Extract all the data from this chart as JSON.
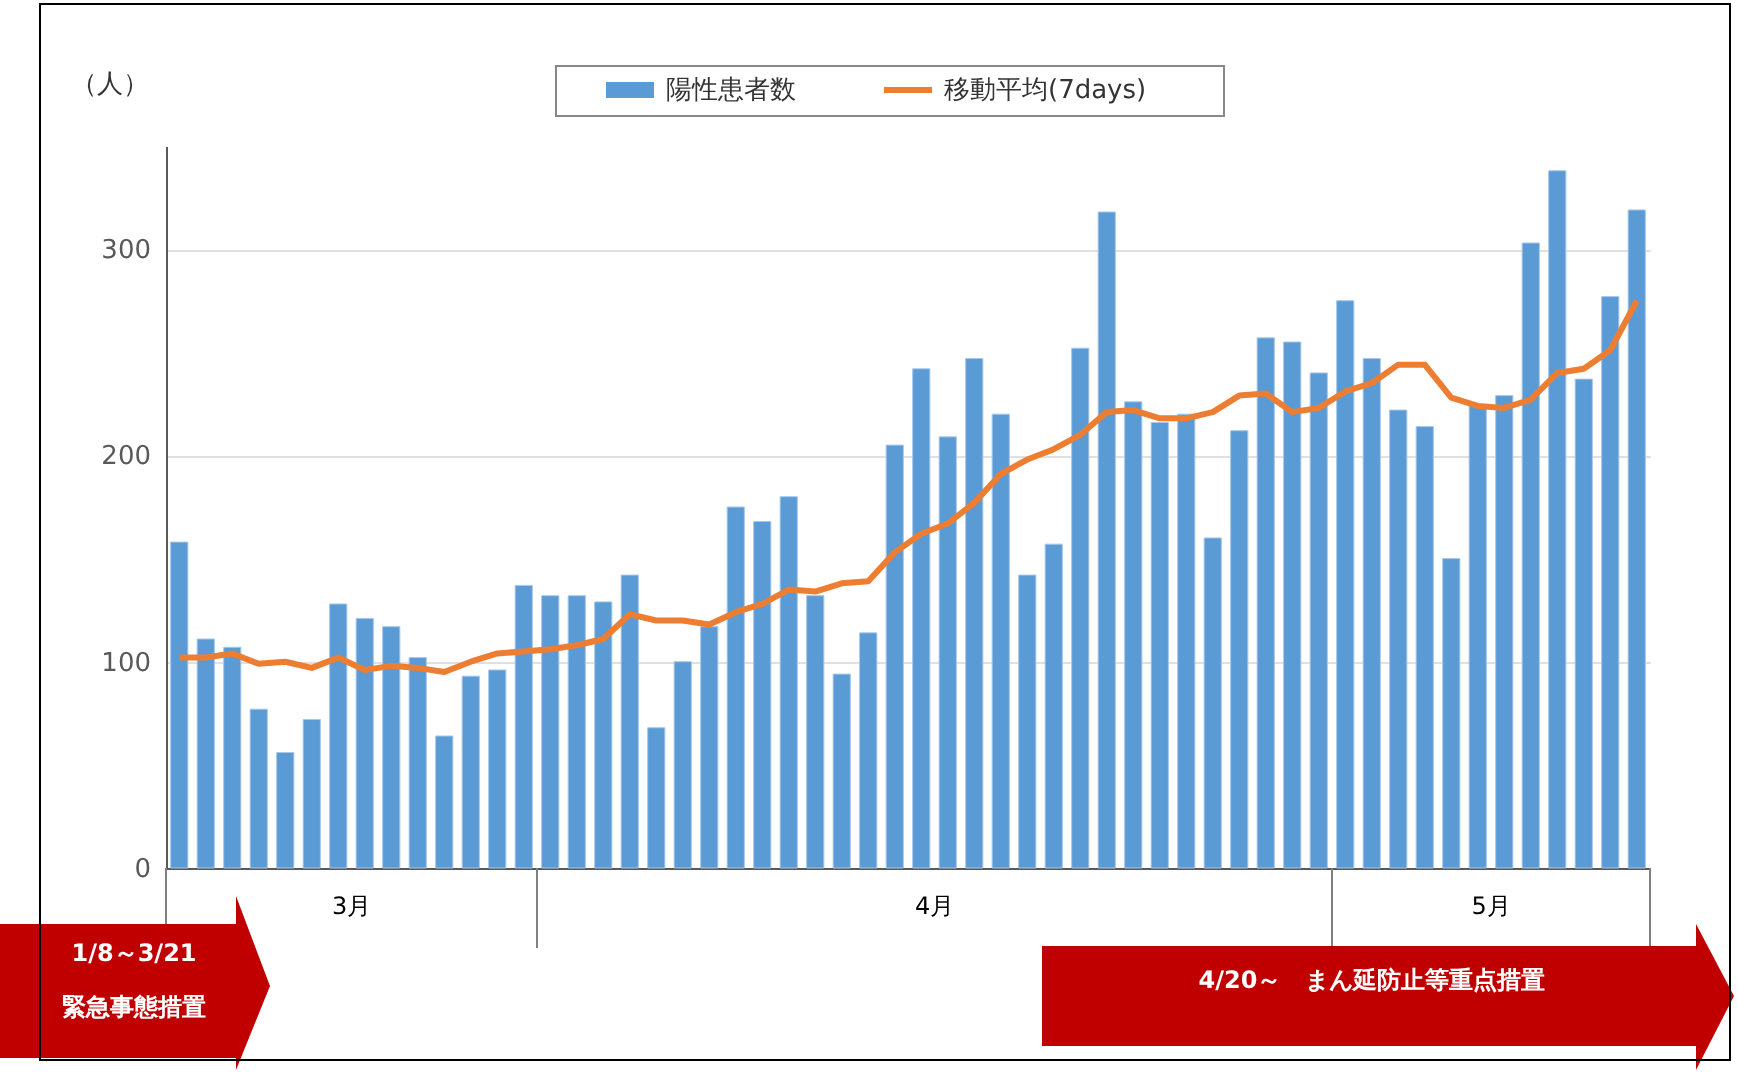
{
  "chart_data": {
    "type": "bar",
    "ylabel": "（人）",
    "categories": [
      null,
      null,
      null,
      null,
      null,
      null,
      null,
      null,
      null,
      null,
      null,
      null,
      null,
      null,
      null,
      null,
      null,
      null,
      null,
      null,
      null,
      null,
      null,
      null,
      null,
      null,
      null,
      null,
      null,
      null,
      null,
      null,
      null,
      null,
      null,
      null,
      null,
      null,
      null,
      null,
      null,
      null,
      null,
      null,
      null,
      null,
      null,
      null,
      null,
      null,
      null,
      null,
      null,
      null,
      null,
      null
    ],
    "series": [
      {
        "name": "陽性患者数",
        "color": "#5b9bd5",
        "values": [
          158,
          111,
          107,
          77,
          56,
          72,
          128,
          121,
          117,
          102,
          64,
          93,
          96,
          137,
          132,
          132,
          129,
          142,
          68,
          100,
          117,
          175,
          168,
          180,
          132,
          94,
          114,
          205,
          242,
          209,
          247,
          220,
          142,
          157,
          252,
          318,
          226,
          216,
          220,
          160,
          212,
          257,
          255,
          240,
          275,
          247,
          222,
          214,
          150,
          224,
          229,
          303,
          338,
          237,
          277,
          319
        ]
      },
      {
        "name": "移動平均(7days)",
        "type": "line",
        "color": "#ed7d31",
        "values": [
          102,
          102,
          104,
          99,
          100,
          97,
          102,
          96,
          98,
          97,
          95,
          100,
          104,
          105,
          106,
          108,
          111,
          123,
          120,
          120,
          118,
          124,
          128,
          135,
          134,
          138,
          139,
          153,
          162,
          167,
          177,
          191,
          198,
          203,
          210,
          221,
          222,
          218,
          218,
          221,
          229,
          230,
          221,
          223,
          231,
          235,
          244,
          244,
          228,
          224,
          223,
          227,
          240,
          242,
          251,
          275
        ]
      }
    ],
    "ylim": [
      0,
      350
    ],
    "yticks": [
      0,
      100,
      200,
      300
    ],
    "grid": "y",
    "legend": "top",
    "annotations": [
      "3月",
      "4月",
      "5月",
      "1/8～3/21\n緊急事態措置",
      "4/20～　まん延防止等重点措置"
    ]
  }
}
